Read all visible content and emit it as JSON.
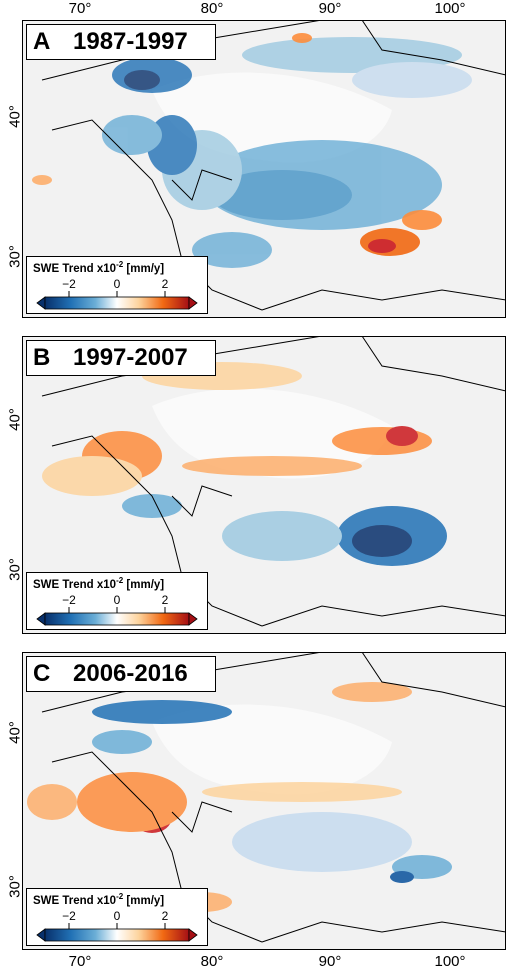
{
  "axes": {
    "lon_ticks": [
      "70°",
      "80°",
      "90°",
      "100°"
    ],
    "lat_ticks": [
      "40°",
      "30°"
    ]
  },
  "panels": [
    {
      "letter": "A",
      "period": "1987-1997",
      "dominant": "negative"
    },
    {
      "letter": "B",
      "period": "1997-2007",
      "dominant": "mixed"
    },
    {
      "letter": "C",
      "period": "2006-2016",
      "dominant": "mixed"
    }
  ],
  "legend": {
    "title_main": "SWE Trend x10",
    "title_exp": "-2",
    "title_unit": " [mm/y]",
    "ticks": [
      "−2",
      "0",
      "2"
    ],
    "colors": [
      "#08306b",
      "#2171b5",
      "#6baed6",
      "#ffffff",
      "#fdd49e",
      "#f16913",
      "#a50f15"
    ]
  }
}
